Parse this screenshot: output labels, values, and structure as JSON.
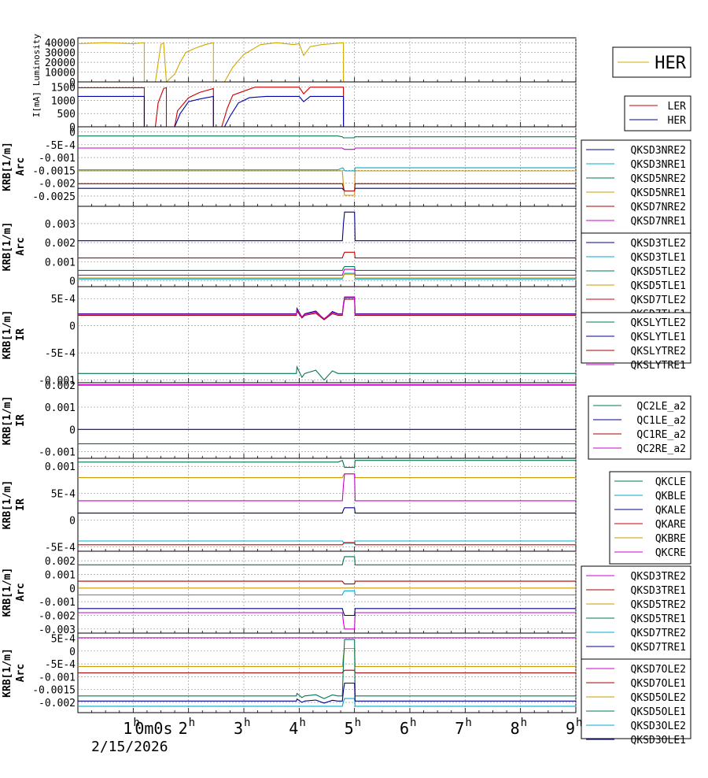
{
  "date_label": "2/15/2026",
  "x_axis": {
    "range_hours": [
      0,
      9
    ],
    "ticks": [
      {
        "v": 1,
        "label": "1"
      },
      {
        "v": 2,
        "label": "2"
      },
      {
        "v": 3,
        "label": "3"
      },
      {
        "v": 4,
        "label": "4"
      },
      {
        "v": 5,
        "label": "5"
      },
      {
        "v": 6,
        "label": "6"
      },
      {
        "v": 7,
        "label": "7"
      },
      {
        "v": 8,
        "label": "8"
      },
      {
        "v": 9,
        "label": "9"
      }
    ],
    "tick_suffix": "h",
    "overlap_text": "0m0s"
  },
  "colors": {
    "luminosity": "#d4a800",
    "LER": "#cc0000",
    "HER_current": "#0000aa",
    "grid": "#999999"
  },
  "chart_data": [
    {
      "type": "line",
      "id": "luminosity",
      "ylabel": "Luminosity",
      "ylim": [
        0,
        45000
      ],
      "ticks": [
        {
          "v": 0,
          "label": "0"
        },
        {
          "v": 10000,
          "label": "10000"
        },
        {
          "v": 20000,
          "label": "20000"
        },
        {
          "v": 30000,
          "label": "30000"
        },
        {
          "v": 40000,
          "label": "40000"
        }
      ],
      "legend_title": "",
      "legend_placement": "right",
      "series": [
        {
          "name": "HER",
          "color": "#d4a800",
          "x": [
            0,
            0.5,
            1.0,
            1.2,
            1.2,
            1.4,
            1.5,
            1.55,
            1.6,
            1.6,
            1.75,
            1.85,
            1.95,
            2.1,
            2.3,
            2.45,
            2.45,
            2.65,
            2.8,
            3.0,
            3.3,
            3.6,
            3.9,
            4.0,
            4.08,
            4.2,
            4.4,
            4.6,
            4.8,
            4.8,
            9.0
          ],
          "y": [
            39000,
            40000,
            39000,
            40000,
            0,
            0,
            38000,
            40000,
            0,
            0,
            8000,
            20000,
            30000,
            34000,
            38000,
            40000,
            0,
            0,
            15000,
            28000,
            38000,
            40000,
            38000,
            39000,
            27000,
            36000,
            38000,
            39000,
            40000,
            0,
            0
          ]
        }
      ]
    },
    {
      "type": "line",
      "id": "current",
      "ylabel": "I[mA]",
      "ylim": [
        0,
        1700
      ],
      "ticks": [
        {
          "v": 0,
          "label": "0"
        },
        {
          "v": 500,
          "label": "500"
        },
        {
          "v": 1000,
          "label": "1000"
        },
        {
          "v": 1500,
          "label": "1500"
        }
      ],
      "series": [
        {
          "name": "LER",
          "color": "#cc0000",
          "x": [
            0,
            1.2,
            1.2,
            1.4,
            1.45,
            1.55,
            1.6,
            1.6,
            1.75,
            1.8,
            2.0,
            2.2,
            2.45,
            2.45,
            2.6,
            2.7,
            2.8,
            3.0,
            3.2,
            3.5,
            3.9,
            4.0,
            4.08,
            4.2,
            4.4,
            4.6,
            4.8,
            4.8,
            9.0
          ],
          "y": [
            1480,
            1480,
            0,
            0,
            900,
            1450,
            1480,
            0,
            0,
            600,
            1100,
            1300,
            1450,
            0,
            0,
            700,
            1200,
            1350,
            1500,
            1500,
            1500,
            1500,
            1250,
            1500,
            1500,
            1500,
            1500,
            0,
            0
          ]
        },
        {
          "name": "HER",
          "color": "#0000aa",
          "x": [
            0,
            1.2,
            1.2,
            1.75,
            1.85,
            2.0,
            2.2,
            2.45,
            2.45,
            2.65,
            2.75,
            2.9,
            3.1,
            3.4,
            3.9,
            4.0,
            4.08,
            4.2,
            4.4,
            4.6,
            4.8,
            4.8,
            9.0
          ],
          "y": [
            1150,
            1150,
            0,
            0,
            500,
            950,
            1050,
            1150,
            0,
            0,
            400,
            900,
            1100,
            1150,
            1150,
            1150,
            950,
            1150,
            1150,
            1150,
            1150,
            0,
            0
          ]
        }
      ]
    },
    {
      "type": "line",
      "id": "arc-nre",
      "ylabel": "KRB[1/m]",
      "ylabel2": "Arc",
      "ylim": [
        -0.0029,
        0.0002
      ],
      "ticks": [
        {
          "v": -0.0025,
          "label": "-0.0025"
        },
        {
          "v": -0.002,
          "label": "-0.002"
        },
        {
          "v": -0.0015,
          "label": "-0.0015"
        },
        {
          "v": -0.001,
          "label": "-0.001"
        },
        {
          "v": -0.0005,
          "label": "-5E-4"
        },
        {
          "v": 0,
          "label": "0"
        }
      ],
      "series": [
        {
          "name": "QKSD3NRE2",
          "color": "#000088",
          "base": -0.0022,
          "jump": -0.0001,
          "shift": 0
        },
        {
          "name": "QKSD3NRE1",
          "color": "#00aacc",
          "base": -0.00148,
          "jump": -4e-05,
          "shift": 8e-05
        },
        {
          "name": "QKSD5NRE2",
          "color": "#007755",
          "base": -0.00016,
          "jump": -7e-05,
          "shift": -3e-05
        },
        {
          "name": "QKSD5NRE1",
          "color": "#cc9900",
          "base": -0.00152,
          "jump": -0.00095,
          "shift": 0
        },
        {
          "name": "QKSD7NRE2",
          "color": "#aa0000",
          "base": -0.00202,
          "jump": -0.00028,
          "shift": 0
        },
        {
          "name": "QKSD7NRE1",
          "color": "#cc00cc",
          "base": -0.00063,
          "jump": -5e-05,
          "shift": 0
        }
      ]
    },
    {
      "type": "line",
      "id": "arc-tle",
      "ylabel": "KRB[1/m]",
      "ylabel2": "Arc",
      "ylim": [
        -0.0003,
        0.0039
      ],
      "ticks": [
        {
          "v": 0,
          "label": "0"
        },
        {
          "v": 0.001,
          "label": "0.001"
        },
        {
          "v": 0.002,
          "label": "0.002"
        },
        {
          "v": 0.003,
          "label": "0.003"
        }
      ],
      "series": [
        {
          "name": "QKSD3TLE2",
          "color": "#000088",
          "base": 0.0021,
          "jump": 0.0015,
          "shift": 0
        },
        {
          "name": "QKSD3TLE1",
          "color": "#00aacc",
          "base": 0.0001,
          "jump": 0.0003,
          "shift": 0
        },
        {
          "name": "QKSD5TLE2",
          "color": "#007755",
          "base": 0.00055,
          "jump": 0.0002,
          "shift": 0
        },
        {
          "name": "QKSD5TLE1",
          "color": "#cc9900",
          "base": 0.00015,
          "jump": 0.0002,
          "shift": 0
        },
        {
          "name": "QKSD7TLE2",
          "color": "#cc0000",
          "base": 0.0012,
          "jump": 0.0003,
          "shift": 0
        },
        {
          "name": "QKSD7TLE1",
          "color": "#cc00cc",
          "base": 0.0003,
          "jump": 0.0003,
          "shift": 0
        }
      ]
    },
    {
      "type": "line",
      "id": "ir-sly",
      "ylabel": "KRB[1/m]",
      "ylabel2": "IR",
      "ylim": [
        -0.00105,
        0.00072
      ],
      "ticks": [
        {
          "v": -0.001,
          "label": "-0.001"
        },
        {
          "v": -0.0005,
          "label": "-5E-4"
        },
        {
          "v": 0,
          "label": "0"
        },
        {
          "v": 0.0005,
          "label": "5E-4"
        }
      ],
      "series": [
        {
          "name": "QKSLYTLE2",
          "color": "#007755",
          "base": -0.00088,
          "jump": 0,
          "shift": 0,
          "wiggle": 0.00012
        },
        {
          "name": "QKSLYTLE1",
          "color": "#000088",
          "base": 0.00022,
          "jump": 0.0003,
          "shift": 0,
          "wiggle": 0.0001
        },
        {
          "name": "QKSLYTRE2",
          "color": "#aa0000",
          "base": 0.00019,
          "jump": 0.0003,
          "shift": 0,
          "wiggle": 8e-05
        },
        {
          "name": "QKSLYTRE1",
          "color": "#cc00cc",
          "base": 0.00021,
          "jump": 0.00032,
          "shift": 0,
          "wiggle": 8e-05
        }
      ]
    },
    {
      "type": "line",
      "id": "ir-qc",
      "ylabel": "KRB[1/m]",
      "ylabel2": "IR",
      "ylim": [
        -0.0013,
        0.0021
      ],
      "ticks": [
        {
          "v": -0.001,
          "label": "-0.001"
        },
        {
          "v": 0,
          "label": "0"
        },
        {
          "v": 0.001,
          "label": "0.001"
        },
        {
          "v": 0.002,
          "label": "0.002"
        }
      ],
      "series": [
        {
          "name": "QC2LE_a2",
          "color": "#007755",
          "base": -0.00065,
          "jump": 0,
          "shift": 0
        },
        {
          "name": "QC1LE_a2",
          "color": "#000088",
          "base": 0.0,
          "jump": 0,
          "shift": 0
        },
        {
          "name": "QC1RE_a2",
          "color": "#aa0000",
          "base": 0.00199,
          "jump": 0,
          "shift": 0
        },
        {
          "name": "QC2RE_a2",
          "color": "#cc00cc",
          "base": 0.00201,
          "jump": 0,
          "shift": 0
        }
      ]
    },
    {
      "type": "line",
      "id": "ir-qk",
      "ylabel": "KRB[1/m]",
      "ylabel2": "IR",
      "ylim": [
        -0.00058,
        0.00115
      ],
      "ticks": [
        {
          "v": -0.0005,
          "label": "-5E-4"
        },
        {
          "v": 0,
          "label": "0"
        },
        {
          "v": 0.0005,
          "label": "5E-4"
        },
        {
          "v": 0.001,
          "label": "0.001"
        }
      ],
      "series": [
        {
          "name": "QKCLE",
          "color": "#007755",
          "base": 0.00108,
          "jump": -0.0001,
          "shift": 3e-05
        },
        {
          "name": "QKBLE",
          "color": "#00aacc",
          "base": -0.00039,
          "jump": -4e-05,
          "shift": 0
        },
        {
          "name": "QKALE",
          "color": "#000088",
          "base": 0.00013,
          "jump": 0.0001,
          "shift": 0
        },
        {
          "name": "QKARE",
          "color": "#cc0000",
          "base": -0.00046,
          "jump": 4e-05,
          "shift": 0
        },
        {
          "name": "QKBRE",
          "color": "#cc9900",
          "base": 0.00079,
          "jump": 7e-05,
          "shift": 0
        },
        {
          "name": "QKCRE",
          "color": "#cc00cc",
          "base": 0.00036,
          "jump": 0.0005,
          "shift": 0
        }
      ]
    },
    {
      "type": "line",
      "id": "arc-tre",
      "ylabel": "KRB[1/m]",
      "ylabel2": "Arc",
      "ylim": [
        -0.0033,
        0.0027
      ],
      "ticks": [
        {
          "v": -0.003,
          "label": "-0.003"
        },
        {
          "v": -0.002,
          "label": "-0.002"
        },
        {
          "v": -0.001,
          "label": "-0.001"
        },
        {
          "v": 0,
          "label": "0"
        },
        {
          "v": 0.001,
          "label": "0.001"
        },
        {
          "v": 0.002,
          "label": "0.002"
        }
      ],
      "series": [
        {
          "name": "QKSD3TRE2",
          "color": "#cc00cc",
          "base": -0.0018,
          "jump": -0.0012,
          "shift": 0
        },
        {
          "name": "QKSD3TRE1",
          "color": "#aa0000",
          "base": 0.0005,
          "jump": -0.0002,
          "shift": 0
        },
        {
          "name": "QKSD5TRE2",
          "color": "#cc9900",
          "base": 0.0,
          "jump": 0.0,
          "shift": 0
        },
        {
          "name": "QKSD5TRE1",
          "color": "#007755",
          "base": 0.0017,
          "jump": 0.0006,
          "shift": 0
        },
        {
          "name": "QKSD7TRE2",
          "color": "#00aacc",
          "base": -0.0005,
          "jump": 0.0003,
          "shift": 0
        },
        {
          "name": "QKSD7TRE1",
          "color": "#000088",
          "base": -0.0015,
          "jump": -0.0005,
          "shift": 0
        }
      ]
    },
    {
      "type": "line",
      "id": "arc-ole",
      "ylabel": "KRB[1/m]",
      "ylabel2": "Arc",
      "ylim": [
        -0.0024,
        0.0007
      ],
      "ticks": [
        {
          "v": -0.002,
          "label": "-0.002"
        },
        {
          "v": -0.0015,
          "label": "-0.0015"
        },
        {
          "v": -0.001,
          "label": "-0.001"
        },
        {
          "v": -0.0005,
          "label": "-5E-4"
        },
        {
          "v": 0,
          "label": "0"
        },
        {
          "v": 0.0005,
          "label": "5E-4"
        }
      ],
      "series": [
        {
          "name": "QKSD7OLE2",
          "color": "#cc00cc",
          "base": 0.00052,
          "jump": 0,
          "shift": 0
        },
        {
          "name": "QKSD7OLE1",
          "color": "#aa0000",
          "base": -0.00085,
          "jump": 0.0001,
          "shift": 0
        },
        {
          "name": "QKSD5OLE2",
          "color": "#cc9900",
          "base": -0.0006,
          "jump": 0.0007,
          "shift": 0
        },
        {
          "name": "QKSD5OLE1",
          "color": "#007755",
          "base": -0.00175,
          "jump": 0.0022,
          "shift": 0,
          "wiggle": 0.0001
        },
        {
          "name": "QKSD3OLE2",
          "color": "#00aacc",
          "base": -0.00215,
          "jump": 0.0003,
          "shift": 0
        },
        {
          "name": "QKSD3OLE1",
          "color": "#000088",
          "base": -0.00195,
          "jump": 0.0007,
          "shift": 0,
          "wiggle": 8e-05
        }
      ]
    }
  ]
}
